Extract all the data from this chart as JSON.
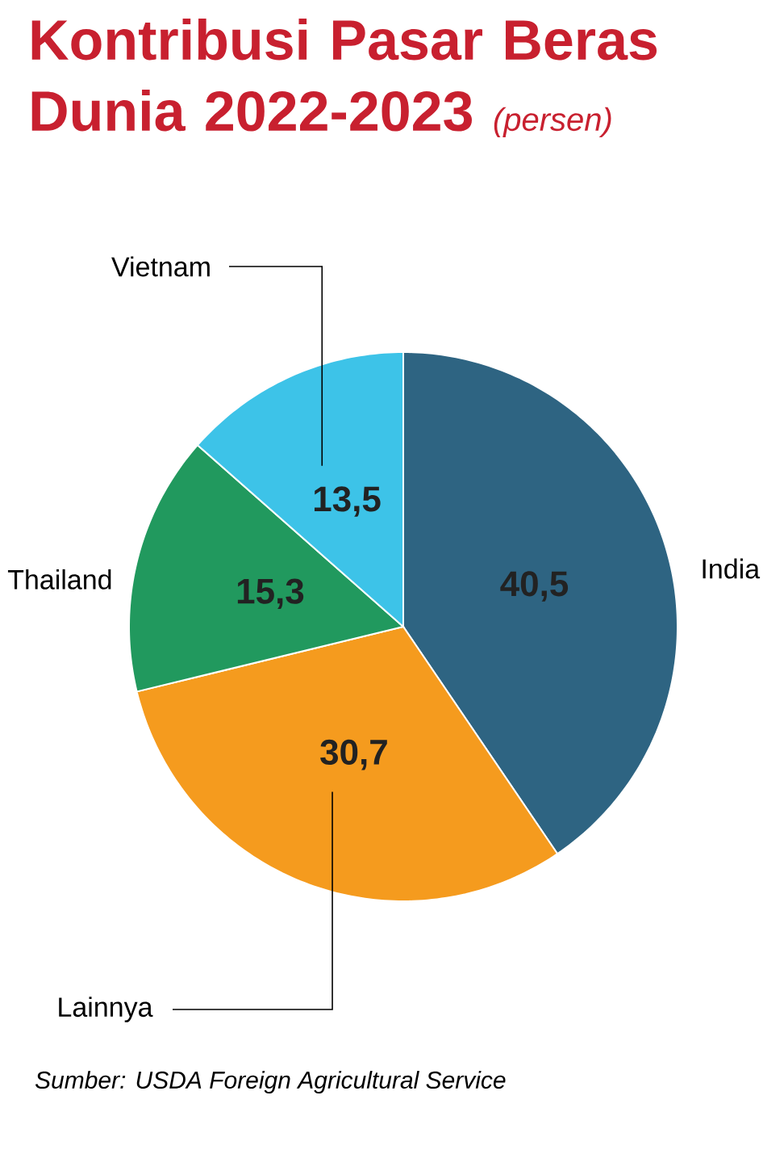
{
  "chart_data": {
    "type": "pie",
    "title": "Kontribusi Pasar Beras Dunia 2022-2023",
    "subtitle": "(persen)",
    "categories": [
      "India",
      "Lainnya",
      "Thailand",
      "Vietnam"
    ],
    "values": [
      40.5,
      30.7,
      15.3,
      13.5
    ],
    "value_labels": [
      "40,5",
      "30,7",
      "15,3",
      "13,5"
    ],
    "colors": [
      "#2e6482",
      "#f59b1e",
      "#21995e",
      "#3dc3e8"
    ],
    "annotations": [
      "Sumber: USDA Foreign Agricultural Service"
    ]
  }
}
